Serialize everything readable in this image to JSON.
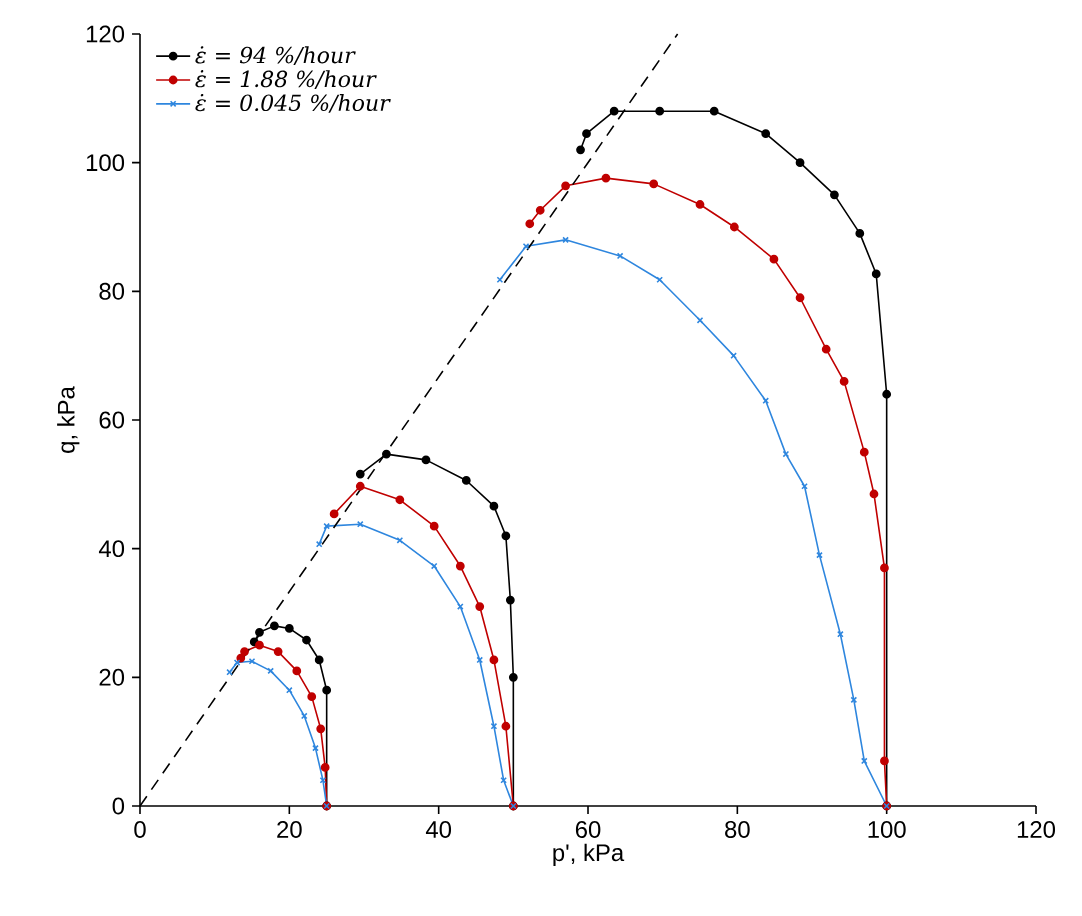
{
  "chart_data": {
    "type": "line",
    "xlabel": "p', kPa",
    "ylabel": "q, kPa",
    "xlim": [
      0,
      120
    ],
    "ylim": [
      0,
      120
    ],
    "xticks": [
      0,
      20,
      40,
      60,
      80,
      100,
      120
    ],
    "yticks": [
      0,
      20,
      40,
      60,
      80,
      100,
      120
    ],
    "grid": false,
    "legend": "top left",
    "series": [
      {
        "name": "ε̇ = 94 %/hour",
        "color": "#000000",
        "marker": "circle",
        "line_style": "solid",
        "x": [
          25,
          25,
          24,
          22.3,
          20,
          18,
          16,
          15.3,
          null,
          50,
          50,
          49.6,
          49,
          47.4,
          43.7,
          38.3,
          33,
          29.5,
          null,
          100,
          100,
          98.6,
          96.4,
          93,
          88.4,
          83.8,
          76.9,
          69.6,
          63.5,
          59.8,
          59
        ],
        "values": [
          0,
          18,
          22.7,
          25.8,
          27.6,
          28,
          27,
          25.5,
          null,
          0,
          20,
          32,
          42,
          46.6,
          50.6,
          53.8,
          54.7,
          51.6,
          null,
          0,
          64,
          82.7,
          89,
          95,
          100,
          104.5,
          108,
          108,
          108,
          104.5,
          102
        ]
      },
      {
        "name": "ε̇ = 1.88 %/hour",
        "color": "#c00000",
        "marker": "circle",
        "line_style": "solid",
        "x": [
          25,
          24.8,
          24.2,
          23,
          21,
          18.5,
          16,
          14,
          13.5,
          null,
          50,
          49,
          47.4,
          45.5,
          42.9,
          39.4,
          34.8,
          29.5,
          26,
          null,
          100,
          99.7,
          99.7,
          98.3,
          97,
          94.3,
          91.9,
          88.4,
          84.9,
          79.6,
          75,
          68.8,
          62.4,
          57,
          53.6,
          52.2
        ],
        "values": [
          0,
          6,
          12,
          17,
          21,
          24,
          25,
          24,
          23,
          null,
          0,
          12.4,
          22.7,
          31,
          37.3,
          43.5,
          47.6,
          49.7,
          45.4,
          null,
          0,
          7,
          37,
          48.5,
          55,
          66,
          71,
          79,
          85,
          90,
          93.5,
          96.7,
          97.6,
          96.4,
          92.6,
          90.5
        ]
      },
      {
        "name": "ε̇ = 0.045 %/hour",
        "color": "#2e86de",
        "marker": "cross",
        "line_style": "solid",
        "x": [
          25,
          24.5,
          23.5,
          22,
          20,
          17.5,
          15,
          13,
          12,
          null,
          50,
          48.7,
          47.4,
          45.5,
          42.9,
          39.4,
          34.8,
          29.5,
          25,
          24,
          null,
          100,
          97,
          95.6,
          93.8,
          91,
          89,
          86.5,
          83.8,
          79.5,
          75,
          69.6,
          64.3,
          57,
          51.7,
          48.2
        ],
        "values": [
          0,
          4,
          9,
          14,
          18,
          21,
          22.5,
          22.3,
          20.8,
          null,
          0,
          4,
          12.4,
          22.7,
          31,
          37.3,
          41.3,
          43.8,
          43.5,
          40.7,
          null,
          0,
          7,
          16.5,
          26.7,
          39,
          49.7,
          54.7,
          63,
          70,
          75.5,
          81.8,
          85.5,
          88,
          87,
          81.8
        ]
      },
      {
        "color": "#000000",
        "marker": "none",
        "line_style": "dashed",
        "x": [
          0,
          72
        ],
        "values": [
          0,
          120
        ]
      }
    ]
  }
}
